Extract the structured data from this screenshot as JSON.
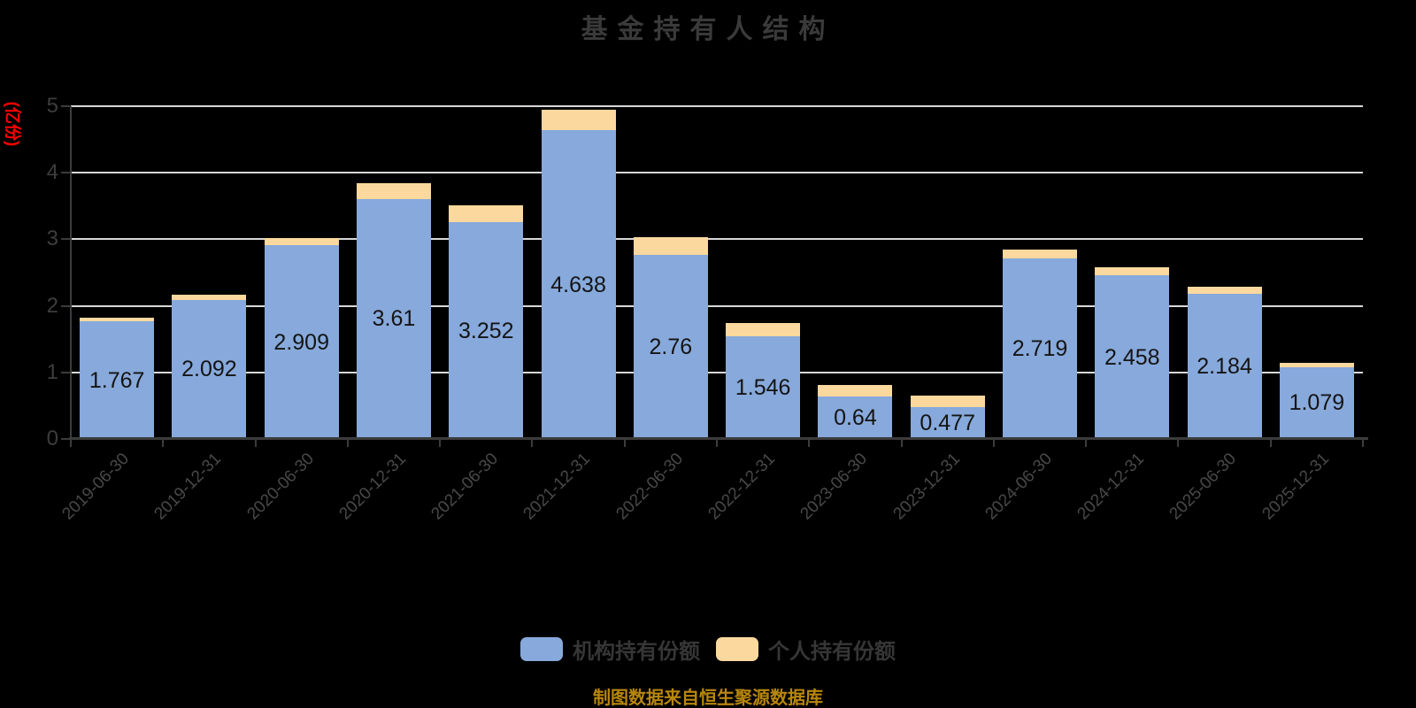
{
  "chart": {
    "title": "基金持有人结构",
    "y_unit": "(亿份)",
    "y_unit_color": "#ff0000",
    "source_note": "制图数据来自恒生聚源数据库",
    "source_note_color": "#b8860b"
  },
  "legend": {
    "items": [
      {
        "label": "机构持有份额",
        "color": "#87a9db"
      },
      {
        "label": "个人持有份额",
        "color": "#fbd89e"
      }
    ]
  },
  "chart_data": {
    "type": "bar",
    "stacked": true,
    "title": "基金持有人结构",
    "ylabel": "(亿份)",
    "categories": [
      "2019-06-30",
      "2019-12-31",
      "2020-06-30",
      "2020-12-31",
      "2021-06-30",
      "2021-12-31",
      "2022-06-30",
      "2022-12-31",
      "2023-06-30",
      "2023-12-31",
      "2024-06-30",
      "2024-12-31",
      "2025-06-30",
      "2025-12-31"
    ],
    "series": [
      {
        "name": "机构持有份额",
        "color": "#87a9db",
        "values": [
          1.767,
          2.092,
          2.909,
          3.61,
          3.252,
          4.638,
          2.76,
          1.546,
          0.64,
          0.477,
          2.719,
          2.458,
          2.184,
          1.079
        ]
      },
      {
        "name": "个人持有份额",
        "color": "#fbd89e",
        "values": [
          0.06,
          0.08,
          0.11,
          0.23,
          0.26,
          0.31,
          0.27,
          0.19,
          0.17,
          0.17,
          0.13,
          0.12,
          0.1,
          0.07
        ]
      }
    ],
    "data_labels_series": "机构持有份额",
    "y_ticks": [
      0,
      1,
      2,
      3,
      4,
      5
    ],
    "ylim": [
      0,
      5
    ],
    "grid": true,
    "grid_color": "#d8d8d8",
    "axis_color": "#3c3c3c",
    "legend_position": "bottom"
  }
}
